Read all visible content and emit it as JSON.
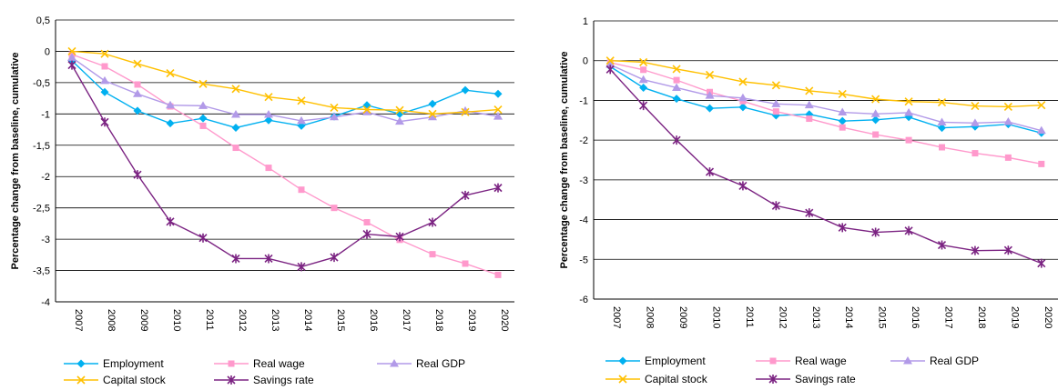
{
  "chart_data": [
    {
      "type": "line",
      "title": "",
      "xlabel": "",
      "ylabel": "Percentage change from baseline, cumulative",
      "ylim": [
        -4,
        0.5
      ],
      "yticks": [
        0.5,
        0,
        -0.5,
        -1,
        -1.5,
        -2,
        -2.5,
        -3,
        -3.5,
        -4
      ],
      "ytick_labels": [
        "0,5",
        "0",
        "-0,5",
        "-1",
        "-1,5",
        "-2",
        "-2,5",
        "-3",
        "-3,5",
        "-4"
      ],
      "grid": "horizontal",
      "legend": "bottom",
      "categories": [
        "2007",
        "2008",
        "2009",
        "2010",
        "2011",
        "2012",
        "2013",
        "2014",
        "2015",
        "2016",
        "2017",
        "2018",
        "2019",
        "2020"
      ],
      "series": [
        {
          "name": "Employment",
          "color": "#00B0F0",
          "marker": "diamond",
          "values": [
            -0.15,
            -0.65,
            -0.95,
            -1.15,
            -1.07,
            -1.22,
            -1.1,
            -1.19,
            -1.04,
            -0.86,
            -1.0,
            -0.84,
            -0.62,
            -0.68
          ]
        },
        {
          "name": "Real wage",
          "color": "#FF99CC",
          "marker": "square",
          "values": [
            -0.05,
            -0.24,
            -0.53,
            -0.88,
            -1.19,
            -1.54,
            -1.86,
            -2.21,
            -2.5,
            -2.73,
            -3.01,
            -3.24,
            -3.39,
            -3.57
          ]
        },
        {
          "name": "Real GDP",
          "color": "#B29AE8",
          "marker": "triangle",
          "values": [
            -0.1,
            -0.47,
            -0.68,
            -0.86,
            -0.87,
            -1.01,
            -1.01,
            -1.11,
            -1.05,
            -0.97,
            -1.12,
            -1.05,
            -0.95,
            -1.04
          ]
        },
        {
          "name": "Capital stock",
          "color": "#FFC000",
          "marker": "x",
          "values": [
            0.0,
            -0.04,
            -0.2,
            -0.35,
            -0.52,
            -0.6,
            -0.73,
            -0.79,
            -0.9,
            -0.93,
            -0.94,
            -1.0,
            -0.97,
            -0.93
          ]
        },
        {
          "name": "Savings rate",
          "color": "#7B2382",
          "marker": "star",
          "values": [
            -0.22,
            -1.13,
            -1.97,
            -2.72,
            -2.98,
            -3.31,
            -3.31,
            -3.44,
            -3.29,
            -2.92,
            -2.96,
            -2.73,
            -2.3,
            -2.18
          ]
        }
      ]
    },
    {
      "type": "line",
      "title": "",
      "xlabel": "",
      "ylabel": "Percentage change from baseline, cumulative",
      "ylim": [
        -6,
        1
      ],
      "yticks": [
        1,
        0,
        -1,
        -2,
        -3,
        -4,
        -5,
        -6
      ],
      "ytick_labels": [
        "1",
        "0",
        "-1",
        "-2",
        "-3",
        "-4",
        "-5",
        "-6"
      ],
      "grid": "horizontal",
      "legend": "bottom",
      "categories": [
        "2007",
        "2008",
        "2009",
        "2010",
        "2011",
        "2012",
        "2013",
        "2014",
        "2015",
        "2016",
        "2017",
        "2018",
        "2019",
        "2020"
      ],
      "series": [
        {
          "name": "Employment",
          "color": "#00B0F0",
          "marker": "diamond",
          "values": [
            -0.15,
            -0.68,
            -0.96,
            -1.2,
            -1.17,
            -1.38,
            -1.35,
            -1.52,
            -1.49,
            -1.42,
            -1.69,
            -1.66,
            -1.6,
            -1.82
          ]
        },
        {
          "name": "Real wage",
          "color": "#FF99CC",
          "marker": "square",
          "values": [
            -0.05,
            -0.23,
            -0.49,
            -0.79,
            -1.02,
            -1.28,
            -1.46,
            -1.68,
            -1.86,
            -2.0,
            -2.18,
            -2.33,
            -2.44,
            -2.6
          ]
        },
        {
          "name": "Real GDP",
          "color": "#B29AE8",
          "marker": "triangle",
          "values": [
            -0.1,
            -0.48,
            -0.68,
            -0.88,
            -0.94,
            -1.09,
            -1.12,
            -1.3,
            -1.34,
            -1.31,
            -1.55,
            -1.57,
            -1.54,
            -1.76
          ]
        },
        {
          "name": "Capital stock",
          "color": "#FFC000",
          "marker": "x",
          "values": [
            0.0,
            -0.04,
            -0.21,
            -0.36,
            -0.53,
            -0.62,
            -0.76,
            -0.84,
            -0.97,
            -1.03,
            -1.05,
            -1.14,
            -1.16,
            -1.12
          ]
        },
        {
          "name": "Savings rate",
          "color": "#7B2382",
          "marker": "star",
          "values": [
            -0.22,
            -1.13,
            -2.0,
            -2.8,
            -3.15,
            -3.65,
            -3.83,
            -4.2,
            -4.32,
            -4.28,
            -4.64,
            -4.78,
            -4.77,
            -5.1
          ]
        }
      ]
    }
  ]
}
